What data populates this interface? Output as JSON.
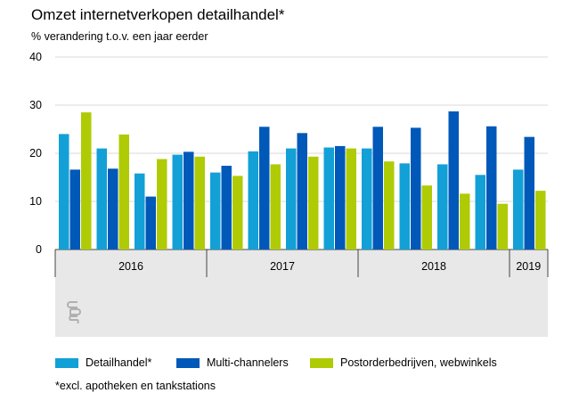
{
  "header": {
    "title": "Omzet internetverkopen detailhandel*",
    "subtitle": "% verandering t.o.v. een jaar eerder"
  },
  "footnote": "*excl. apotheken en tankstations",
  "colors": {
    "Detailhandel*": "#12a0d7",
    "Multi-channelers": "#0058b8",
    "Postorderbedrijven, webwinkels": "#afcb05",
    "grid": "#d9d9d9",
    "axis_band": "#e8e8e8",
    "logo": "#b0b0b0"
  },
  "logo": {
    "name": "cbs-logo",
    "text": "cbs"
  },
  "chart_data": {
    "type": "bar",
    "ylim": [
      0,
      40
    ],
    "yticks": [
      0,
      10,
      20,
      30,
      40
    ],
    "grid": true,
    "legend_position": "bottom",
    "year_groups": [
      {
        "label": "2016",
        "quarters": 4
      },
      {
        "label": "2017",
        "quarters": 4
      },
      {
        "label": "2018",
        "quarters": 4
      },
      {
        "label": "2019",
        "quarters": 1
      }
    ],
    "series": [
      {
        "name": "Detailhandel*",
        "values": [
          24.0,
          21.0,
          15.8,
          19.7,
          16.0,
          20.4,
          21.0,
          21.2,
          21.0,
          17.9,
          17.7,
          15.5,
          16.6
        ]
      },
      {
        "name": "Multi-channelers",
        "values": [
          16.6,
          16.8,
          11.0,
          20.3,
          17.4,
          25.5,
          24.2,
          21.5,
          25.5,
          25.3,
          28.7,
          25.6,
          23.4
        ]
      },
      {
        "name": "Postorderbedrijven, webwinkels",
        "values": [
          28.5,
          23.9,
          18.8,
          19.3,
          15.3,
          17.7,
          19.3,
          21.0,
          18.3,
          13.3,
          11.6,
          9.5,
          12.2
        ]
      }
    ]
  }
}
